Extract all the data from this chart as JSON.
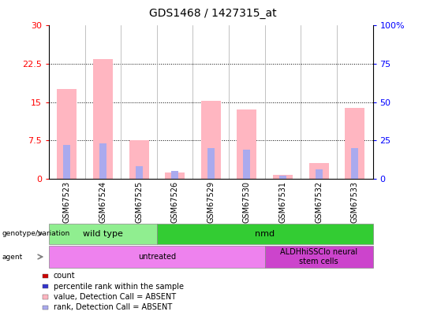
{
  "title": "GDS1468 / 1427315_at",
  "samples": [
    "GSM67523",
    "GSM67524",
    "GSM67525",
    "GSM67526",
    "GSM67529",
    "GSM67530",
    "GSM67531",
    "GSM67532",
    "GSM67533"
  ],
  "pink_bar_values": [
    17.5,
    23.5,
    7.5,
    1.2,
    15.2,
    13.5,
    0.8,
    3.0,
    13.8
  ],
  "blue_rank_pct": [
    22,
    23,
    8,
    5,
    20,
    19,
    2,
    6,
    20
  ],
  "red_count_values": [
    0.25,
    0.25,
    0.25,
    0.25,
    0.25,
    0.25,
    0.25,
    0.25,
    0.25
  ],
  "blue_small_pct": [
    22,
    23,
    8,
    5,
    20,
    19,
    2,
    6,
    20
  ],
  "ylim_left": [
    0,
    30
  ],
  "ylim_right": [
    0,
    100
  ],
  "yticks_left": [
    0,
    7.5,
    15,
    22.5,
    30
  ],
  "yticks_right": [
    0,
    25,
    50,
    75,
    100
  ],
  "ytick_labels_left": [
    "0",
    "7.5",
    "15",
    "22.5",
    "30"
  ],
  "ytick_labels_right": [
    "0",
    "25",
    "50",
    "75",
    "100%"
  ],
  "genotype_groups": [
    {
      "label": "wild type",
      "start": 0,
      "end": 3,
      "color": "#90EE90"
    },
    {
      "label": "nmd",
      "start": 3,
      "end": 9,
      "color": "#33CC33"
    }
  ],
  "agent_groups": [
    {
      "label": "untreated",
      "start": 0,
      "end": 6,
      "color": "#EE82EE"
    },
    {
      "label": "ALDHhiSSClo neural\nstem cells",
      "start": 6,
      "end": 9,
      "color": "#CC44CC"
    }
  ],
  "legend_items": [
    {
      "color": "#CC0000",
      "label": "count",
      "marker": "s"
    },
    {
      "color": "#3333CC",
      "label": "percentile rank within the sample",
      "marker": "s"
    },
    {
      "color": "#FFB6C1",
      "label": "value, Detection Call = ABSENT",
      "marker": "s"
    },
    {
      "color": "#AAAAEE",
      "label": "rank, Detection Call = ABSENT",
      "marker": "s"
    }
  ],
  "pink_color": "#FFB6C1",
  "blue_color": "#AAAAEE",
  "red_color": "#CC0000",
  "dark_blue_color": "#3333CC"
}
